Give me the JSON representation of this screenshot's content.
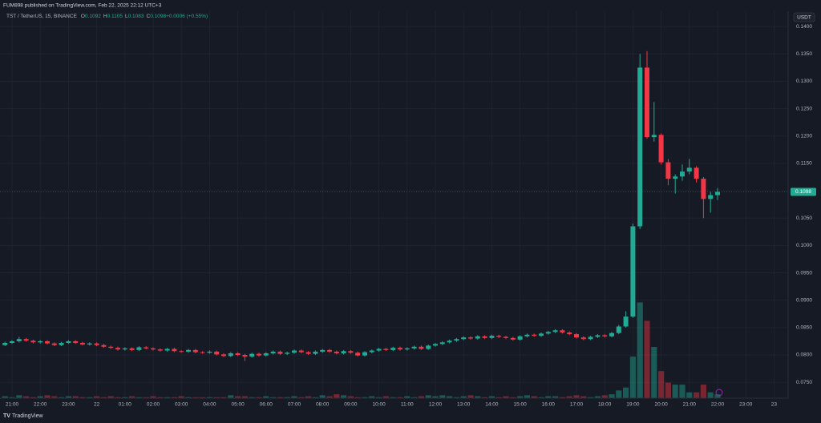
{
  "chart_data": {
    "type": "candlestick",
    "header": "FUM898 published on TradingView.com, Feb 22, 2025 22:12 UTC+3",
    "symbol": "TST / TetherUS, 15, BINANCE",
    "legend": [
      {
        "key": "O",
        "value": "0.1092"
      },
      {
        "key": "H",
        "value": "0.1105"
      },
      {
        "key": "L",
        "value": "0.1083"
      },
      {
        "key": "C",
        "value": "0.1098"
      },
      {
        "key": "",
        "value": "+0.0006 (+0.55%)"
      }
    ],
    "currency": "USDT",
    "brand": "TradingView",
    "up_color": "#22ab94",
    "down_color": "#f23645",
    "grid": true,
    "ylim": [
      0.0721,
      0.1428
    ],
    "yticks": [
      {
        "value": 0.075,
        "label": "0.0750"
      },
      {
        "value": 0.08,
        "label": "0.0800"
      },
      {
        "value": 0.085,
        "label": "0.0850"
      },
      {
        "value": 0.09,
        "label": "0.0900"
      },
      {
        "value": 0.095,
        "label": "0.0950"
      },
      {
        "value": 0.1,
        "label": "0.1000"
      },
      {
        "value": 0.105,
        "label": "0.1050"
      },
      {
        "value": 0.11,
        "label": "0.1100"
      },
      {
        "value": 0.115,
        "label": "0.1150"
      },
      {
        "value": 0.12,
        "label": "0.1200"
      },
      {
        "value": 0.125,
        "label": "0.1250"
      },
      {
        "value": 0.13,
        "label": "0.1300"
      },
      {
        "value": 0.135,
        "label": "0.1350"
      },
      {
        "value": 0.14,
        "label": "0.1400"
      }
    ],
    "last_price": {
      "value": 0.1098,
      "label": "0.1098"
    },
    "volume_lim": [
      0,
      40
    ],
    "categories": [
      null,
      "21:00",
      null,
      null,
      null,
      "22:00",
      null,
      null,
      null,
      "23:00",
      null,
      null,
      null,
      "22",
      null,
      null,
      null,
      "01:00",
      null,
      null,
      null,
      "02:00",
      null,
      null,
      null,
      "03:00",
      null,
      null,
      null,
      "04:00",
      null,
      null,
      null,
      "05:00",
      null,
      null,
      null,
      "06:00",
      null,
      null,
      null,
      "07:00",
      null,
      null,
      null,
      "08:00",
      null,
      null,
      null,
      "09:00",
      null,
      null,
      null,
      "10:00",
      null,
      null,
      null,
      "11:00",
      null,
      null,
      null,
      "12:00",
      null,
      null,
      null,
      "13:00",
      null,
      null,
      null,
      "14:00",
      null,
      null,
      null,
      "15:00",
      null,
      null,
      null,
      "16:00",
      null,
      null,
      null,
      "17:00",
      null,
      null,
      null,
      "18:00",
      null,
      null,
      null,
      "19:00",
      null,
      null,
      null,
      "20:00",
      null,
      null,
      null,
      "21:00",
      null,
      null,
      null,
      "22:00",
      null,
      null,
      null,
      "23:00",
      null,
      null,
      null,
      "23"
    ],
    "open": [
      0.0818,
      0.0822,
      0.0825,
      0.0829,
      0.0826,
      0.0823,
      0.0825,
      0.0821,
      0.0818,
      0.0822,
      0.0825,
      0.0822,
      0.0819,
      0.0821,
      0.0818,
      0.0815,
      0.0813,
      0.081,
      0.0812,
      0.0809,
      0.0814,
      0.0812,
      0.081,
      0.0808,
      0.0811,
      0.0807,
      0.0806,
      0.0809,
      0.0805,
      0.0804,
      0.0806,
      0.0801,
      0.0798,
      0.0803,
      0.08,
      0.0797,
      0.0802,
      0.0799,
      0.0803,
      0.0806,
      0.0802,
      0.0804,
      0.0808,
      0.0805,
      0.0802,
      0.0806,
      0.0809,
      0.0806,
      0.0803,
      0.0807,
      0.0804,
      0.0799,
      0.0805,
      0.0808,
      0.0811,
      0.0809,
      0.0813,
      0.081,
      0.0812,
      0.0815,
      0.0811,
      0.0817,
      0.082,
      0.0823,
      0.0826,
      0.0829,
      0.0832,
      0.083,
      0.0834,
      0.0831,
      0.0835,
      0.0833,
      0.0831,
      0.0828,
      0.0834,
      0.0837,
      0.0835,
      0.0839,
      0.0842,
      0.0845,
      0.0841,
      0.0838,
      0.0832,
      0.0829,
      0.0833,
      0.0836,
      0.0834,
      0.084,
      0.0852,
      0.087,
      0.1035,
      0.1325,
      0.1198,
      0.1202,
      0.1152,
      0.1122,
      0.1126,
      0.1135,
      0.1142,
      0.1122,
      0.1085,
      0.1092,
      null,
      null,
      null,
      null,
      null,
      null,
      null,
      null
    ],
    "high": [
      0.0824,
      0.0827,
      0.0833,
      0.0831,
      0.0828,
      0.0827,
      0.0827,
      0.0823,
      0.0824,
      0.0827,
      0.0827,
      0.0824,
      0.0823,
      0.0823,
      0.082,
      0.0817,
      0.0815,
      0.0814,
      0.0814,
      0.0816,
      0.0816,
      0.0814,
      0.0812,
      0.0813,
      0.0813,
      0.0809,
      0.0811,
      0.0811,
      0.0807,
      0.0808,
      0.0808,
      0.0803,
      0.0805,
      0.0805,
      0.0802,
      0.0804,
      0.0804,
      0.0805,
      0.0808,
      0.0808,
      0.0806,
      0.081,
      0.081,
      0.0807,
      0.0808,
      0.0811,
      0.0811,
      0.0808,
      0.0809,
      0.0809,
      0.0806,
      0.0807,
      0.081,
      0.0813,
      0.0813,
      0.0815,
      0.0815,
      0.0814,
      0.0817,
      0.0817,
      0.0819,
      0.0822,
      0.0825,
      0.0828,
      0.0831,
      0.0834,
      0.0834,
      0.0836,
      0.0836,
      0.0837,
      0.0837,
      0.0835,
      0.0833,
      0.0836,
      0.0839,
      0.0839,
      0.0841,
      0.0844,
      0.0847,
      0.0847,
      0.0843,
      0.084,
      0.0834,
      0.0835,
      0.0838,
      0.0838,
      0.0842,
      0.0855,
      0.088,
      0.104,
      0.135,
      0.1355,
      0.1262,
      0.1205,
      0.1158,
      0.113,
      0.1148,
      0.1158,
      0.1145,
      0.1125,
      0.1098,
      0.1105,
      null,
      null,
      null,
      null,
      null,
      null,
      null,
      null
    ],
    "low": [
      0.0816,
      0.082,
      0.0823,
      0.0824,
      0.0821,
      0.0821,
      0.0819,
      0.0816,
      0.0816,
      0.082,
      0.082,
      0.0817,
      0.0817,
      0.0816,
      0.0813,
      0.0811,
      0.0808,
      0.0808,
      0.0807,
      0.0807,
      0.081,
      0.0808,
      0.0806,
      0.0806,
      0.0805,
      0.0804,
      0.0804,
      0.0803,
      0.0802,
      0.0802,
      0.0799,
      0.0796,
      0.0796,
      0.0798,
      0.0789,
      0.0795,
      0.0797,
      0.0797,
      0.0801,
      0.08,
      0.08,
      0.0802,
      0.0803,
      0.08,
      0.08,
      0.0804,
      0.0804,
      0.0801,
      0.0801,
      0.0802,
      0.0797,
      0.0797,
      0.0803,
      0.0806,
      0.0807,
      0.0807,
      0.0808,
      0.0808,
      0.081,
      0.0809,
      0.0809,
      0.0815,
      0.0818,
      0.0821,
      0.0824,
      0.0827,
      0.0828,
      0.0828,
      0.0829,
      0.0829,
      0.0831,
      0.0829,
      0.0826,
      0.0826,
      0.0832,
      0.0833,
      0.0833,
      0.0837,
      0.084,
      0.0839,
      0.0836,
      0.083,
      0.0827,
      0.0827,
      0.0831,
      0.0832,
      0.0832,
      0.0838,
      0.085,
      0.0868,
      0.103,
      0.1195,
      0.119,
      0.1148,
      0.111,
      0.1095,
      0.1118,
      0.113,
      0.1115,
      0.105,
      0.106,
      0.1083,
      null,
      null,
      null,
      null,
      null,
      null,
      null,
      null
    ],
    "close": [
      0.0822,
      0.0825,
      0.0829,
      0.0826,
      0.0823,
      0.0825,
      0.0821,
      0.0818,
      0.0822,
      0.0825,
      0.0822,
      0.0819,
      0.0821,
      0.0818,
      0.0815,
      0.0813,
      0.081,
      0.0812,
      0.0809,
      0.0814,
      0.0812,
      0.081,
      0.0808,
      0.0811,
      0.0807,
      0.0806,
      0.0809,
      0.0805,
      0.0804,
      0.0806,
      0.0801,
      0.0798,
      0.0803,
      0.08,
      0.0797,
      0.0802,
      0.0799,
      0.0803,
      0.0806,
      0.0802,
      0.0804,
      0.0808,
      0.0805,
      0.0802,
      0.0806,
      0.0809,
      0.0806,
      0.0803,
      0.0807,
      0.0804,
      0.0799,
      0.0805,
      0.0808,
      0.0811,
      0.0809,
      0.0813,
      0.081,
      0.0812,
      0.0815,
      0.0811,
      0.0817,
      0.082,
      0.0823,
      0.0826,
      0.0829,
      0.0832,
      0.083,
      0.0834,
      0.0831,
      0.0835,
      0.0833,
      0.0831,
      0.0828,
      0.0834,
      0.0837,
      0.0835,
      0.0839,
      0.0842,
      0.0845,
      0.0841,
      0.0838,
      0.0832,
      0.0829,
      0.0833,
      0.0836,
      0.0834,
      0.084,
      0.0852,
      0.087,
      0.1035,
      0.1325,
      0.1198,
      0.1202,
      0.1152,
      0.1122,
      0.1126,
      0.1135,
      0.1142,
      0.1122,
      0.1085,
      0.1092,
      0.1098,
      null,
      null,
      null,
      null,
      null,
      null,
      null,
      null
    ],
    "volume": [
      0.2,
      0.1,
      0.3,
      0.2,
      0.1,
      0.2,
      0.3,
      0.2,
      0.1,
      0.2,
      0.2,
      0.1,
      0.1,
      0.2,
      0.1,
      0.2,
      0.1,
      0.1,
      0.2,
      0.1,
      0.1,
      0.2,
      0.1,
      0.1,
      0.1,
      0.2,
      0.1,
      0.1,
      0.1,
      0.1,
      0.1,
      0.1,
      0.3,
      0.2,
      0.2,
      0.1,
      0.1,
      0.2,
      0.1,
      0.1,
      0.1,
      0.2,
      0.1,
      0.2,
      0.1,
      0.3,
      0.2,
      0.4,
      0.3,
      0.2,
      0.1,
      0.1,
      0.2,
      0.1,
      0.2,
      0.1,
      0.1,
      0.2,
      0.1,
      0.2,
      0.3,
      0.2,
      0.3,
      0.2,
      0.1,
      0.2,
      0.3,
      0.2,
      0.1,
      0.2,
      0.1,
      0.2,
      0.1,
      0.2,
      0.3,
      0.2,
      0.1,
      0.2,
      0.2,
      0.1,
      0.2,
      0.3,
      0.2,
      0.1,
      0.2,
      0.3,
      0.4,
      0.8,
      1.1,
      4.3,
      9.9,
      8.0,
      5.3,
      2.8,
      1.6,
      1.4,
      1.4,
      0.6,
      0.6,
      1.4,
      0.6,
      0.4,
      null,
      null,
      null,
      null,
      null,
      null,
      null,
      null
    ]
  }
}
